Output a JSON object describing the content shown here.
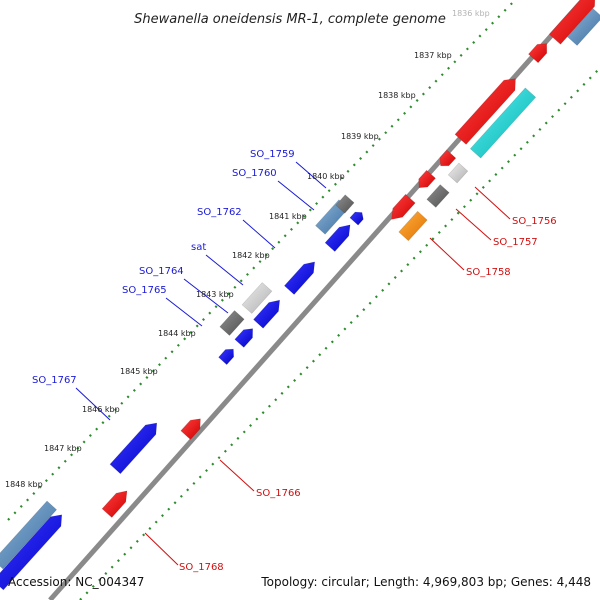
{
  "title": "Shewanella oneidensis MR-1, complete genome",
  "footer": {
    "accession": "Accession: NC_004347",
    "summary": "Topology: circular; Length: 4,969,803 bp; Genes: 4,448"
  },
  "colors": {
    "backbone": "#8a8a8a",
    "ticks": "#2e8b2e",
    "label_forward": "#1a1ad6",
    "label_reverse": "#d01010",
    "gene_forward": "#0000ee",
    "gene_reverse": "#ee0000",
    "gene_steelblue": "#4682b4",
    "gene_cyan": "#00cccc",
    "gene_gray": "#707070",
    "gene_lightgray": "#c8c8c8",
    "gene_orange": "#ff8c00"
  },
  "ticks": [
    "1836 kbp",
    "1837 kbp",
    "1838 kbp",
    "1839 kbp",
    "1840 kbp",
    "1841 kbp",
    "1842 kbp",
    "1843 kbp",
    "1844 kbp",
    "1845 kbp",
    "1846 kbp",
    "1847 kbp",
    "1848 kbp"
  ],
  "forward_labels": [
    "SO_1759",
    "SO_1760",
    "SO_1762",
    "sat",
    "SO_1764",
    "SO_1765",
    "SO_1767"
  ],
  "reverse_labels": [
    "SO_1756",
    "SO_1757",
    "SO_1758",
    "SO_1766",
    "SO_1768"
  ]
}
